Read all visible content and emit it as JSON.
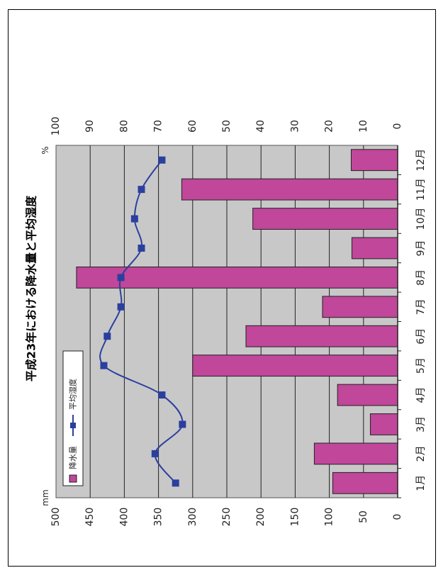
{
  "chart_data": {
    "type": "bar",
    "title": "平成23年における降水量と平均湿度",
    "categories": [
      "1月",
      "2月",
      "3月",
      "4月",
      "5月",
      "6月",
      "7月",
      "8月",
      "9月",
      "10月",
      "11月",
      "12月"
    ],
    "series": [
      {
        "name": "降水量",
        "type": "bar",
        "axis": "left",
        "color": "#c0479a",
        "values": [
          95,
          122,
          40,
          88,
          300,
          222,
          110,
          470,
          67,
          212,
          316,
          68
        ]
      },
      {
        "name": "平均湿度",
        "type": "line",
        "axis": "right",
        "color": "#2b3f9e",
        "values": [
          65,
          71,
          63,
          69,
          86,
          85,
          81,
          81,
          75,
          77,
          75,
          69
        ]
      }
    ],
    "ylim": [
      0,
      500
    ],
    "yticks": [
      0,
      50,
      100,
      150,
      200,
      250,
      300,
      350,
      400,
      450,
      500
    ],
    "ylabel": "mm",
    "y2lim": [
      0,
      100
    ],
    "y2ticks": [
      0,
      10,
      20,
      30,
      40,
      50,
      60,
      70,
      80,
      90,
      100
    ],
    "y2label": "%",
    "grid": true,
    "legend_position": "top-left",
    "plot_background": "#c8c8c8"
  }
}
